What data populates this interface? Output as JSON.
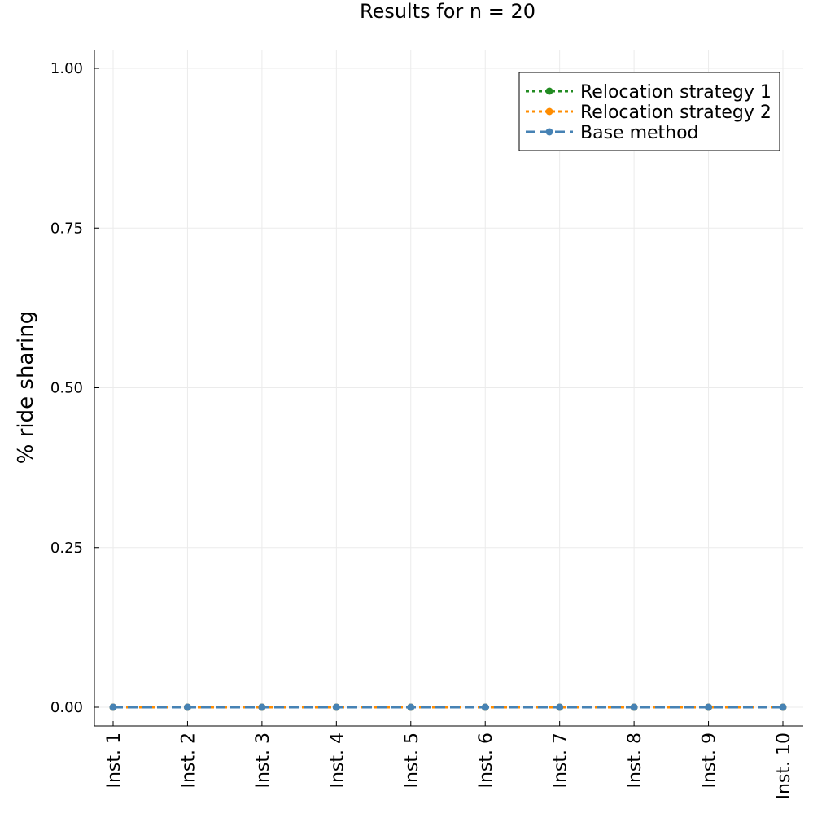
{
  "chart_data": {
    "type": "line",
    "title": "Results for n = 20",
    "xlabel": "",
    "ylabel": "% ride sharing",
    "categories": [
      "Inst. 1",
      "Inst. 2",
      "Inst. 3",
      "Inst. 4",
      "Inst. 5",
      "Inst. 6",
      "Inst. 7",
      "Inst. 8",
      "Inst. 9",
      "Inst. 10"
    ],
    "ylim": [
      0,
      1
    ],
    "yticks": [
      "0.00",
      "0.25",
      "0.50",
      "0.75",
      "1.00"
    ],
    "grid": true,
    "legend_position": "top-right",
    "series": [
      {
        "name": "Relocation strategy 1",
        "color": "#228b22",
        "dash": "dotted",
        "values": [
          0,
          0,
          0,
          0,
          0,
          0,
          0,
          0,
          0,
          0
        ]
      },
      {
        "name": "Relocation strategy 2",
        "color": "#ff8c00",
        "dash": "dotted",
        "values": [
          0,
          0,
          0,
          0,
          0,
          0,
          0,
          0,
          0,
          0
        ]
      },
      {
        "name": "Base method",
        "color": "#4682b4",
        "dash": "dashed",
        "values": [
          0,
          0,
          0,
          0,
          0,
          0,
          0,
          0,
          0,
          0
        ]
      }
    ]
  }
}
